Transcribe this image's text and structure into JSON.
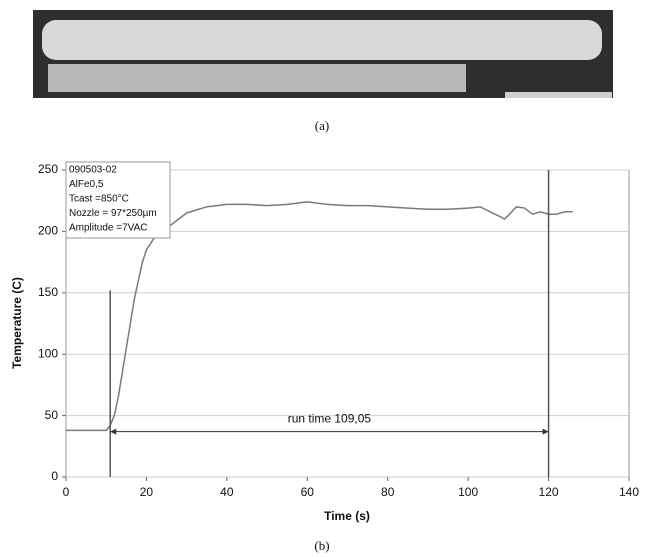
{
  "captions": [
    "(a)",
    "(b)"
  ],
  "chart_data": {
    "type": "line",
    "xlabel": "Time (s)",
    "ylabel": "Temperature (C)",
    "info_box": [
      "090503-02",
      "AlFe0,5",
      "Tcast =850°C",
      "Nozzle = 97*250µm",
      "Amplitude =7VAC"
    ],
    "x": [
      0,
      5,
      10,
      11,
      12,
      13,
      14,
      15,
      16,
      17,
      18,
      19,
      20,
      22,
      24,
      26,
      28,
      30,
      35,
      40,
      45,
      50,
      55,
      60,
      65,
      70,
      75,
      80,
      85,
      90,
      95,
      100,
      103,
      106,
      108,
      109,
      110,
      112,
      114,
      116,
      118,
      120,
      122,
      124,
      126
    ],
    "series": [
      {
        "color": "#7a7a7a",
        "values": [
          38,
          38,
          38,
          42,
          50,
          65,
          85,
          105,
          125,
          145,
          160,
          175,
          185,
          195,
          200,
          205,
          210,
          215,
          220,
          222,
          222,
          221,
          222,
          224,
          222,
          221,
          221,
          220,
          219,
          218,
          218,
          219,
          220,
          215,
          212,
          210,
          213,
          220,
          219,
          214,
          216,
          214,
          214,
          216,
          216
        ]
      }
    ],
    "vlines": [
      {
        "x": 11,
        "y_end": 152
      },
      {
        "x": 120,
        "y_end": 250
      }
    ],
    "annotation": {
      "text": "run time 109,05",
      "x_start": 11,
      "x_end": 120,
      "y": 37
    },
    "xlim": [
      0,
      140
    ],
    "xticks": [
      0,
      20,
      40,
      60,
      80,
      100,
      120,
      140
    ],
    "ylim": [
      0,
      250
    ],
    "yticks": [
      0,
      50,
      100,
      150,
      200,
      250
    ],
    "grid": true
  }
}
